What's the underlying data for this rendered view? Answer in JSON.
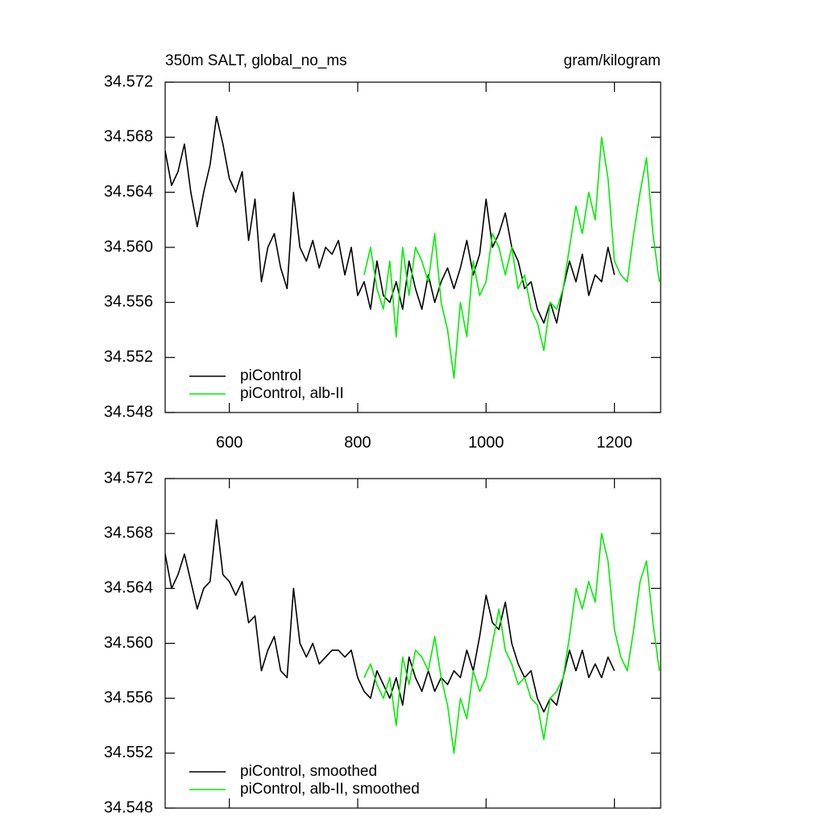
{
  "chart_data": [
    {
      "type": "line",
      "title": "350m SALT, global_no_ms",
      "units_label": "gram/kilogram",
      "xlim": [
        500,
        1272
      ],
      "xticks": [
        600,
        800,
        1000,
        1200
      ],
      "show_xtick_labels": true,
      "ylim": [
        34.548,
        34.572
      ],
      "yticks": [
        34.548,
        34.552,
        34.556,
        {
          "value": 34.56,
          "label": "34.560"
        },
        34.564,
        34.568,
        34.572
      ],
      "legend": "lower left",
      "series": [
        {
          "name": "piControl",
          "color": "#000000",
          "x": [
            500,
            510,
            520,
            530,
            540,
            550,
            560,
            570,
            580,
            590,
            600,
            610,
            620,
            630,
            640,
            650,
            660,
            670,
            680,
            690,
            700,
            710,
            720,
            730,
            740,
            750,
            760,
            770,
            780,
            790,
            800,
            810,
            820,
            830,
            840,
            850,
            860,
            870,
            880,
            890,
            900,
            910,
            920,
            930,
            940,
            950,
            960,
            970,
            980,
            990,
            1000,
            1010,
            1020,
            1030,
            1040,
            1050,
            1060,
            1070,
            1080,
            1090,
            1100,
            1110,
            1120,
            1130,
            1140,
            1150,
            1160,
            1170,
            1180,
            1190,
            1200
          ],
          "values": [
            34.567,
            34.5645,
            34.5655,
            34.5675,
            34.564,
            34.5615,
            34.564,
            34.566,
            34.5695,
            34.5675,
            34.565,
            34.564,
            34.5655,
            34.5605,
            34.5635,
            34.5575,
            34.56,
            34.561,
            34.5585,
            34.557,
            34.564,
            34.56,
            34.559,
            34.5605,
            34.5585,
            34.56,
            34.5595,
            34.5605,
            34.558,
            34.56,
            34.5565,
            34.5575,
            34.5555,
            34.559,
            34.5565,
            34.556,
            34.5575,
            34.5555,
            34.559,
            34.557,
            34.5555,
            34.558,
            34.556,
            34.5575,
            34.5585,
            34.557,
            34.5585,
            34.5605,
            34.558,
            34.5595,
            34.5635,
            34.56,
            34.561,
            34.5625,
            34.56,
            34.559,
            34.557,
            34.5575,
            34.5555,
            34.5545,
            34.556,
            34.5545,
            34.557,
            34.559,
            34.5575,
            34.5595,
            34.5565,
            34.558,
            34.5575,
            34.56,
            34.558
          ]
        },
        {
          "name": "piControl, alb-II",
          "color": "#00ee00",
          "x": [
            810,
            820,
            830,
            840,
            850,
            860,
            870,
            880,
            890,
            900,
            910,
            920,
            930,
            940,
            950,
            960,
            970,
            980,
            990,
            1000,
            1010,
            1020,
            1030,
            1040,
            1050,
            1060,
            1070,
            1080,
            1090,
            1100,
            1110,
            1120,
            1130,
            1140,
            1150,
            1160,
            1170,
            1180,
            1190,
            1200,
            1210,
            1220,
            1230,
            1240,
            1250,
            1260,
            1270
          ],
          "values": [
            34.558,
            34.56,
            34.557,
            34.5555,
            34.559,
            34.5535,
            34.56,
            34.5565,
            34.56,
            34.559,
            34.5575,
            34.561,
            34.556,
            34.554,
            34.5505,
            34.556,
            34.5535,
            34.559,
            34.5565,
            34.5575,
            34.561,
            34.56,
            34.558,
            34.56,
            34.557,
            34.558,
            34.5555,
            34.5545,
            34.5525,
            34.556,
            34.5555,
            34.557,
            34.56,
            34.563,
            34.561,
            34.564,
            34.562,
            34.568,
            34.565,
            34.559,
            34.558,
            34.5575,
            34.561,
            34.564,
            34.5665,
            34.561,
            34.5575
          ]
        }
      ]
    },
    {
      "type": "line",
      "xlim": [
        500,
        1272
      ],
      "xticks": [
        600,
        800,
        1000,
        1200
      ],
      "show_xtick_labels": false,
      "ylim": [
        34.548,
        34.572
      ],
      "yticks": [
        34.548,
        34.552,
        34.556,
        {
          "value": 34.56,
          "label": "34.560"
        },
        34.564,
        34.568,
        34.572
      ],
      "legend": "lower left",
      "series": [
        {
          "name": "piControl, smoothed",
          "color": "#000000",
          "x": [
            500,
            510,
            520,
            530,
            540,
            550,
            560,
            570,
            580,
            590,
            600,
            610,
            620,
            630,
            640,
            650,
            660,
            670,
            680,
            690,
            700,
            710,
            720,
            730,
            740,
            750,
            760,
            770,
            780,
            790,
            800,
            810,
            820,
            830,
            840,
            850,
            860,
            870,
            880,
            890,
            900,
            910,
            920,
            930,
            940,
            950,
            960,
            970,
            980,
            990,
            1000,
            1010,
            1020,
            1030,
            1040,
            1050,
            1060,
            1070,
            1080,
            1090,
            1100,
            1110,
            1120,
            1130,
            1140,
            1150,
            1160,
            1170,
            1180,
            1190,
            1200
          ],
          "values": [
            34.5665,
            34.564,
            34.565,
            34.5665,
            34.5645,
            34.5625,
            34.564,
            34.5645,
            34.569,
            34.565,
            34.5645,
            34.5635,
            34.5645,
            34.5615,
            34.562,
            34.558,
            34.5595,
            34.5605,
            34.558,
            34.5575,
            34.564,
            34.56,
            34.559,
            34.56,
            34.5585,
            34.559,
            34.5595,
            34.5595,
            34.559,
            34.5595,
            34.5575,
            34.5565,
            34.556,
            34.558,
            34.557,
            34.556,
            34.5575,
            34.5555,
            34.559,
            34.5575,
            34.5565,
            34.558,
            34.5565,
            34.5575,
            34.557,
            34.558,
            34.5575,
            34.5595,
            34.558,
            34.5605,
            34.5635,
            34.5615,
            34.561,
            34.563,
            34.56,
            34.5585,
            34.5575,
            34.558,
            34.556,
            34.555,
            34.556,
            34.5555,
            34.5575,
            34.5595,
            34.558,
            34.5595,
            34.5575,
            34.5585,
            34.5575,
            34.559,
            34.558
          ]
        },
        {
          "name": "piControl, alb-II, smoothed",
          "color": "#00ee00",
          "x": [
            810,
            820,
            830,
            840,
            850,
            860,
            870,
            880,
            890,
            900,
            910,
            920,
            930,
            940,
            950,
            960,
            970,
            980,
            990,
            1000,
            1010,
            1020,
            1030,
            1040,
            1050,
            1060,
            1070,
            1080,
            1090,
            1100,
            1110,
            1120,
            1130,
            1140,
            1150,
            1160,
            1170,
            1180,
            1190,
            1200,
            1210,
            1220,
            1230,
            1240,
            1250,
            1260,
            1270
          ],
          "values": [
            34.5575,
            34.5585,
            34.557,
            34.556,
            34.5575,
            34.554,
            34.559,
            34.557,
            34.5595,
            34.559,
            34.558,
            34.5605,
            34.5575,
            34.5555,
            34.552,
            34.556,
            34.5545,
            34.558,
            34.5565,
            34.5575,
            34.56,
            34.5625,
            34.5595,
            34.5585,
            34.557,
            34.5575,
            34.556,
            34.5555,
            34.553,
            34.556,
            34.5565,
            34.5575,
            34.5605,
            34.564,
            34.5625,
            34.5645,
            34.563,
            34.568,
            34.566,
            34.561,
            34.559,
            34.558,
            34.561,
            34.5645,
            34.566,
            34.5615,
            34.558
          ]
        }
      ]
    }
  ]
}
